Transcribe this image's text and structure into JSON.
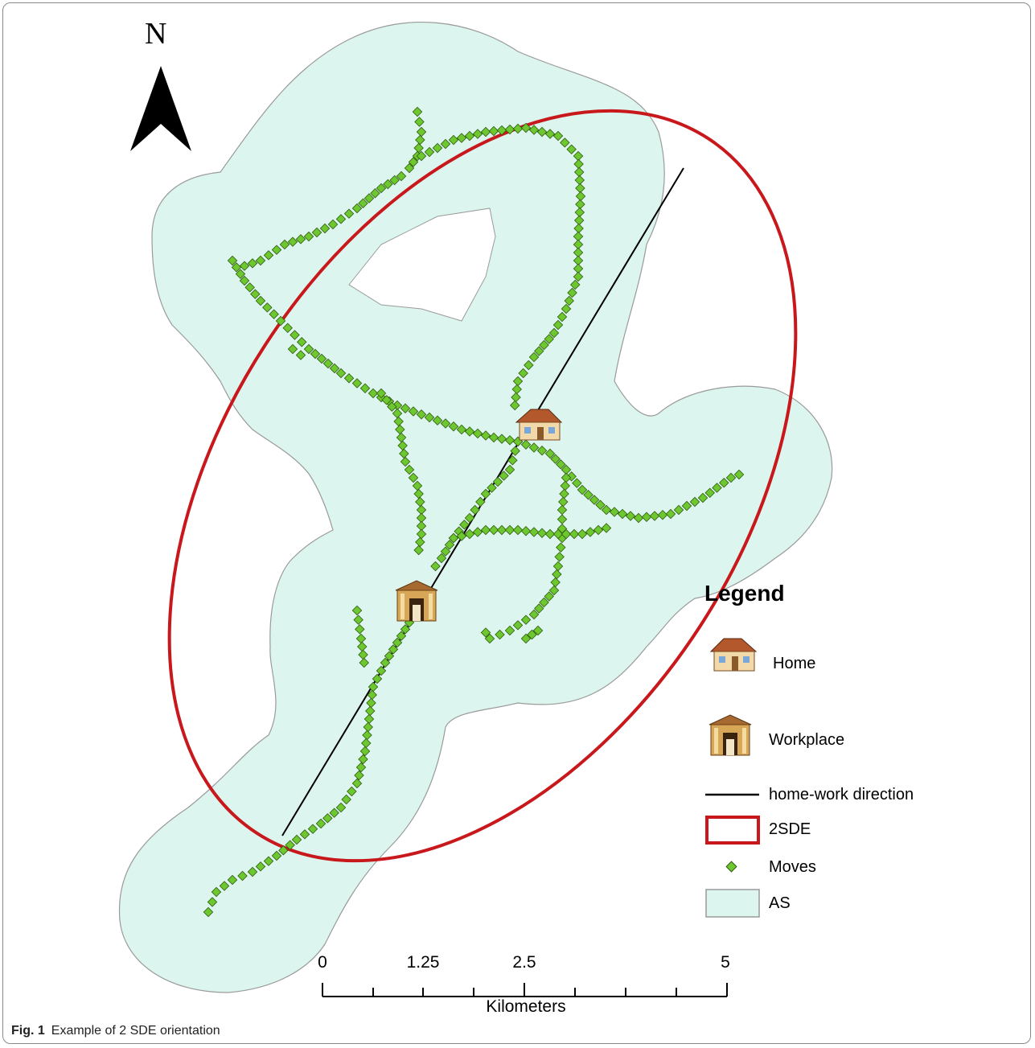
{
  "north_arrow": {
    "letter": "N",
    "icon": "north-arrow-icon"
  },
  "legend": {
    "title": "Legend",
    "items": [
      {
        "label": "Home",
        "icon": "house-icon"
      },
      {
        "label": "Workplace",
        "icon": "building-icon"
      },
      {
        "label": "home-work direction",
        "icon": "line-symbol",
        "color": "#000000"
      },
      {
        "label": "2SDE",
        "icon": "ellipse-symbol",
        "color": "#c8181c"
      },
      {
        "label": "Moves",
        "icon": "point-symbol",
        "color": "#6dc72e"
      },
      {
        "label": "AS",
        "icon": "area-symbol",
        "color": "#dcf5ee"
      }
    ]
  },
  "scale_bar": {
    "ticks": [
      "0",
      "1.25",
      "2.5",
      "5"
    ],
    "unit": "Kilometers"
  },
  "caption": {
    "label": "Fig. 1",
    "text": "Example of 2 SDE orientation"
  },
  "colors": {
    "activity_space_fill": "#dcf5ee",
    "activity_space_stroke": "#9a9a9a",
    "ellipse_stroke": "#c8181c",
    "moves_fill": "#6dc72e",
    "moves_stroke": "#2e5a10",
    "direction_line": "#000000"
  }
}
